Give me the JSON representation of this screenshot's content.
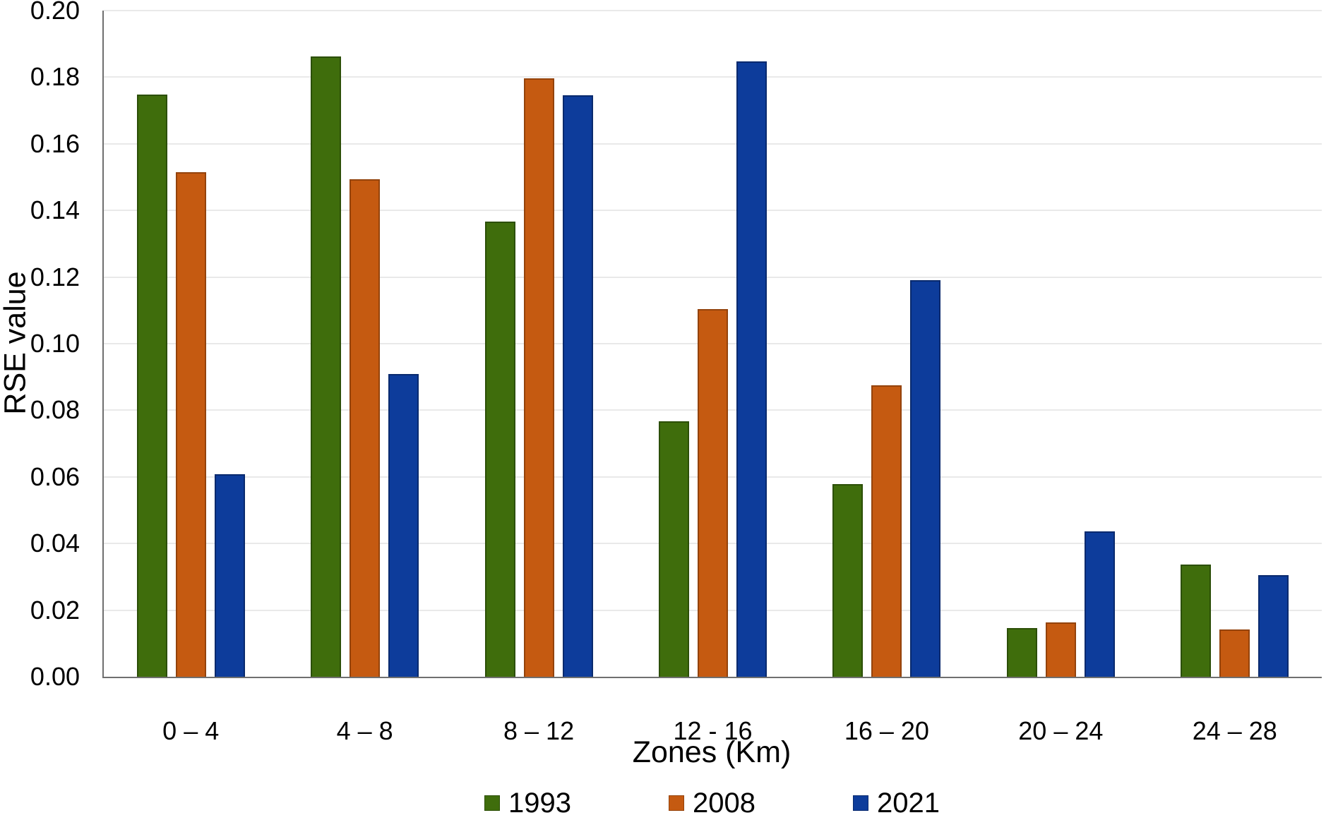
{
  "chart_data": {
    "type": "bar",
    "title": "",
    "ylabel": "RSE value",
    "xlabel": "Zones (Km)",
    "ylim": [
      0,
      0.2
    ],
    "y_tick_step": 0.02,
    "y_tick_labels": [
      "0.00",
      "0.02",
      "0.04",
      "0.06",
      "0.08",
      "0.10",
      "0.12",
      "0.14",
      "0.16",
      "0.18",
      "0.20"
    ],
    "grid": true,
    "legend_position": "bottom",
    "categories": [
      "0 – 4",
      "4 – 8",
      "8 – 12",
      "12 - 16",
      "16 – 20",
      "20 – 24",
      "24 – 28"
    ],
    "series": [
      {
        "name": "1993",
        "color": "#3f6d0c",
        "border_color": "#2c4f07",
        "values": [
          0.1748,
          0.1862,
          0.1367,
          0.0766,
          0.0578,
          0.0146,
          0.0337
        ]
      },
      {
        "name": "2008",
        "color": "#c55a11",
        "border_color": "#94430c",
        "values": [
          0.1515,
          0.1494,
          0.1797,
          0.1103,
          0.0874,
          0.0163,
          0.0142
        ]
      },
      {
        "name": "2021",
        "color": "#0d3c9b",
        "border_color": "#092a6e",
        "values": [
          0.0609,
          0.0908,
          0.1746,
          0.1848,
          0.1191,
          0.0436,
          0.0305
        ]
      }
    ]
  }
}
